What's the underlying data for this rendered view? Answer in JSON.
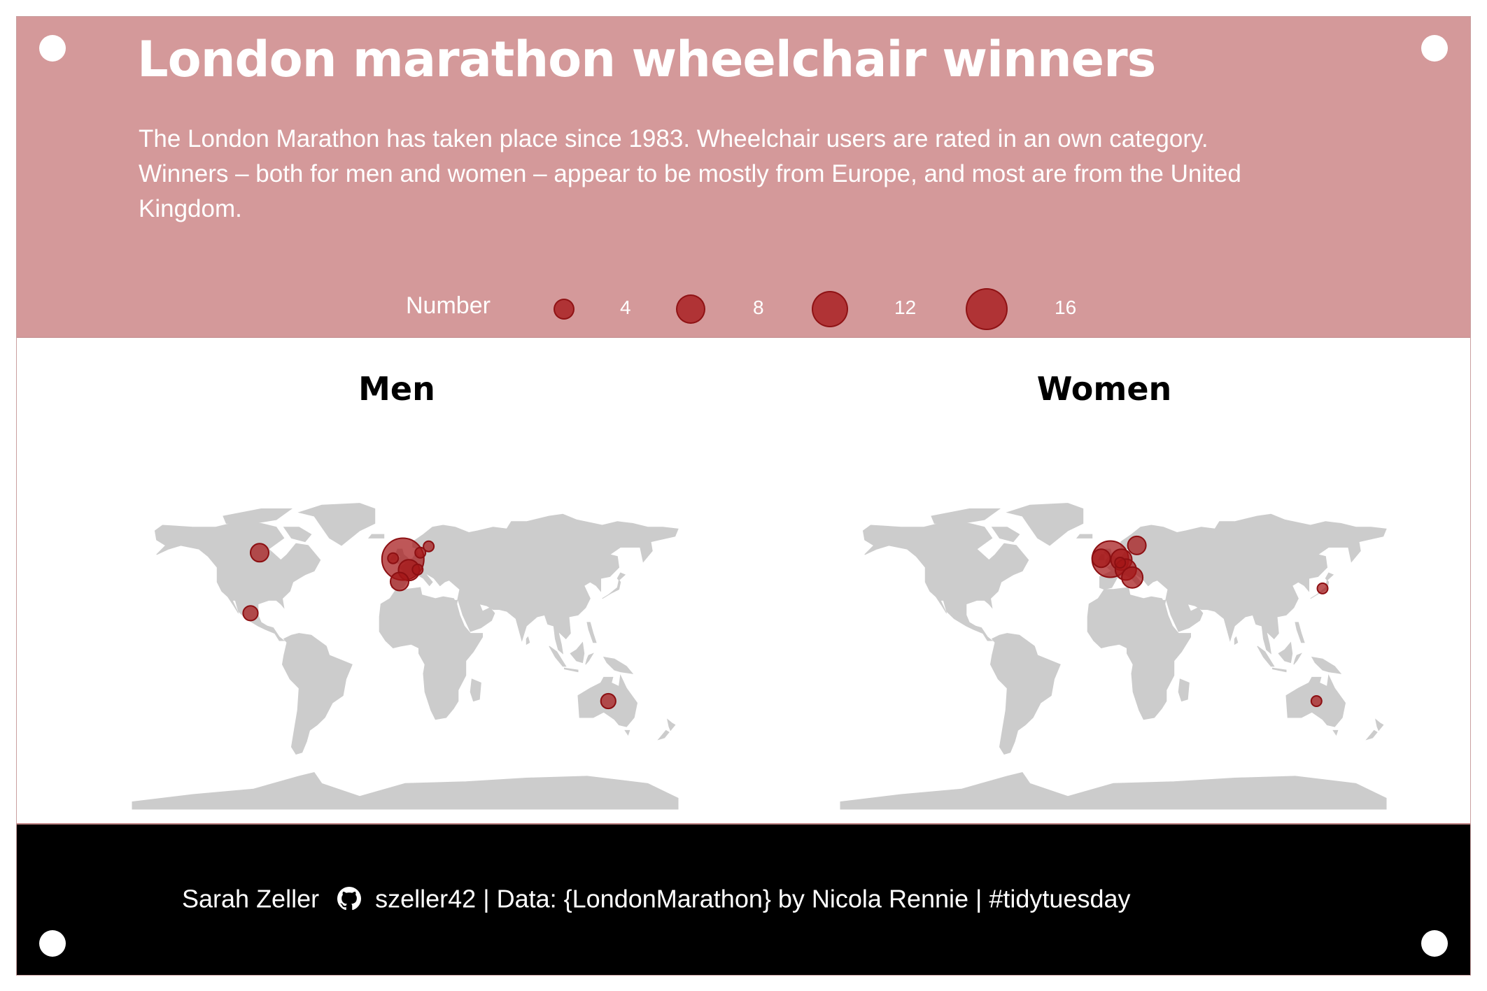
{
  "header": {
    "title": "London marathon wheelchair winners",
    "subtitle": "The London Marathon has taken place since 1983. Wheelchair users are rated in an own category. Winners – both for men and women – appear to be mostly from Europe, and most are from the United Kingdom."
  },
  "legend": {
    "title": "Number",
    "items": [
      {
        "label": "4",
        "value": 4
      },
      {
        "label": "8",
        "value": 8
      },
      {
        "label": "12",
        "value": 12
      },
      {
        "label": "16",
        "value": 16
      }
    ]
  },
  "colors": {
    "header_background": "#d4999a",
    "bubble_fill": "#a51618",
    "land": "#cccccc",
    "footer_background": "#000000"
  },
  "map_data": {
    "projection": "equirectangular-world",
    "panels": [
      {
        "title": "Men",
        "points": [
          {
            "country": "Canada",
            "lon": -96,
            "lat": 56,
            "value": 3
          },
          {
            "country": "Mexico",
            "lon": -102,
            "lat": 23,
            "value": 2
          },
          {
            "country": "United Kingdom",
            "lon": -1.5,
            "lat": 52.5,
            "value": 16
          },
          {
            "country": "Ireland",
            "lon": -8,
            "lat": 53,
            "value": 1
          },
          {
            "country": "Denmark",
            "lon": 10,
            "lat": 56,
            "value": 1
          },
          {
            "country": "France",
            "lon": 2.5,
            "lat": 46.5,
            "value": 4
          },
          {
            "country": "Switzerland",
            "lon": 8.2,
            "lat": 46.8,
            "value": 1
          },
          {
            "country": "Spain",
            "lon": -3.7,
            "lat": 40.3,
            "value": 3
          },
          {
            "country": "Sweden",
            "lon": 15.5,
            "lat": 59.5,
            "value": 1
          },
          {
            "country": "Australia",
            "lon": 134,
            "lat": -25,
            "value": 2
          }
        ]
      },
      {
        "title": "Women",
        "points": [
          {
            "country": "United Kingdom",
            "lon": -2,
            "lat": 52.5,
            "value": 12
          },
          {
            "country": "Ireland",
            "lon": -8,
            "lat": 53,
            "value": 3
          },
          {
            "country": "Netherlands",
            "lon": 5.3,
            "lat": 52.2,
            "value": 4
          },
          {
            "country": "Belgium",
            "lon": 4.5,
            "lat": 50.6,
            "value": 1
          },
          {
            "country": "Sweden",
            "lon": 15.5,
            "lat": 60,
            "value": 3
          },
          {
            "country": "Switzerland",
            "lon": 8.2,
            "lat": 46.8,
            "value": 4
          },
          {
            "country": "Italy",
            "lon": 12.5,
            "lat": 42.5,
            "value": 4
          },
          {
            "country": "Japan",
            "lon": 138,
            "lat": 36.5,
            "value": 1
          },
          {
            "country": "Australia",
            "lon": 134,
            "lat": -25,
            "value": 1
          }
        ]
      }
    ]
  },
  "footer": {
    "author": "Sarah Zeller",
    "github_handle": "szeller42",
    "source": "| Data: {LondonMarathon} by Nicola Rennie | #tidytuesday"
  }
}
